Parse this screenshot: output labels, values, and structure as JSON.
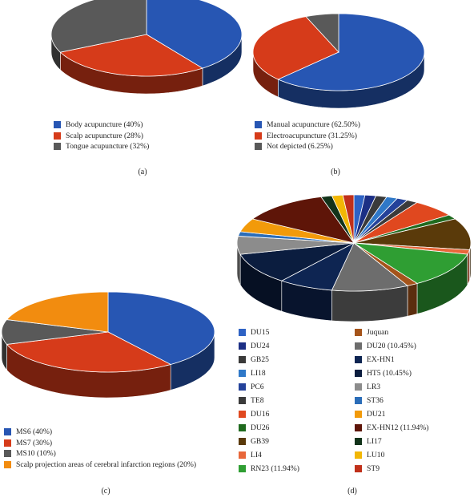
{
  "chart_data": [
    {
      "id": "a",
      "type": "pie",
      "caption": "(a)",
      "categories": [
        "Body acupuncture (40%)",
        "Scalp acupuncture (28%)",
        "Tongue acupuncture (32%)"
      ],
      "values": [
        40,
        28,
        32
      ],
      "colors": [
        "#2756b3",
        "#d63b1a",
        "#595959"
      ]
    },
    {
      "id": "b",
      "type": "pie",
      "caption": "(b)",
      "categories": [
        "Manual acupuncture (62.50%)",
        "Electroacupuncture (31.25%)",
        "Not depicted (6.25%)"
      ],
      "values": [
        62.5,
        31.25,
        6.25
      ],
      "colors": [
        "#2756b3",
        "#d63b1a",
        "#595959"
      ]
    },
    {
      "id": "c",
      "type": "pie",
      "caption": "(c)",
      "categories": [
        "MS6 (40%)",
        "MS7 (30%)",
        "MS10 (10%)",
        "Scalp projection areas of cerebral infarction regions (20%)"
      ],
      "values": [
        40,
        30,
        10,
        20
      ],
      "colors": [
        "#2756b3",
        "#d63b1a",
        "#595959",
        "#f28c0f"
      ]
    },
    {
      "id": "d",
      "type": "pie",
      "caption": "(d)",
      "categories": [
        "DU15",
        "DU24",
        "GB25",
        "LI18",
        "PC6",
        "TE8",
        "DU16",
        "DU26",
        "GB39",
        "LI4",
        "RN23 (11.94%)",
        "Juquan",
        "DU20 (10.45%)",
        "EX-HN1",
        "HT5 (10.45%)",
        "LR3",
        "ST36",
        "DU21",
        "EX-HN12 (11.94%)",
        "LI17",
        "LU10",
        "ST9"
      ],
      "values": [
        1.49,
        1.49,
        1.49,
        1.49,
        1.49,
        1.49,
        5.97,
        1.49,
        10.45,
        1.49,
        11.94,
        1.49,
        10.45,
        7.46,
        10.45,
        5.97,
        1.49,
        4.48,
        11.94,
        1.49,
        1.49,
        1.49
      ],
      "colors": [
        "#2e62c4",
        "#1c2f85",
        "#3a3a3a",
        "#2f78c8",
        "#24429a",
        "#3b3b3b",
        "#e0481f",
        "#1f6a1e",
        "#5a3a0a",
        "#e8673a",
        "#2f9e33",
        "#a5541a",
        "#6d6d6d",
        "#0e2552",
        "#0b1d3f",
        "#8c8c8c",
        "#2b6db8",
        "#f29a0a",
        "#5e1508",
        "#12331a",
        "#f2b705",
        "#c0301a"
      ]
    }
  ]
}
